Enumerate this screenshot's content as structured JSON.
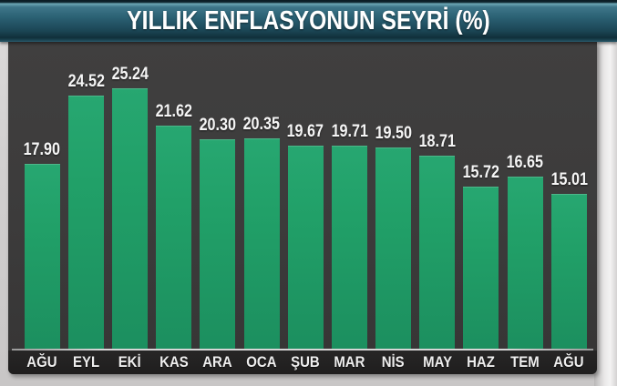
{
  "title": "YILLIK ENFLASYONUN SEYRİ (%)",
  "chart_data": {
    "type": "bar",
    "title": "YILLIK ENFLASYONUN SEYRİ (%)",
    "categories": [
      "AĞU",
      "EYL",
      "EKİ",
      "KAS",
      "ARA",
      "OCA",
      "ŞUB",
      "MAR",
      "NİS",
      "MAY",
      "HAZ",
      "TEM",
      "AĞU"
    ],
    "values": [
      17.9,
      24.52,
      25.24,
      21.62,
      20.3,
      20.35,
      19.67,
      19.71,
      19.5,
      18.71,
      15.72,
      16.65,
      15.01
    ],
    "value_labels": [
      "17.90",
      "24.52",
      "25.24",
      "21.62",
      "20.30",
      "20.35",
      "19.67",
      "19.71",
      "19.50",
      "18.71",
      "15.72",
      "16.65",
      "15.01"
    ],
    "xlabel": "",
    "ylabel": "",
    "ylim": [
      0,
      28
    ],
    "grid": false,
    "legend_position": "none",
    "data_labels": true,
    "colors": {
      "bar": "#1f9e68",
      "plot_background": "#3c3b3b",
      "axis_strip_background": "#232222",
      "baseline": "#d2d2d2",
      "banner_teal": "#2a6073",
      "label_text": "#ffffff",
      "frame_gray": "#d2d0d0"
    }
  }
}
